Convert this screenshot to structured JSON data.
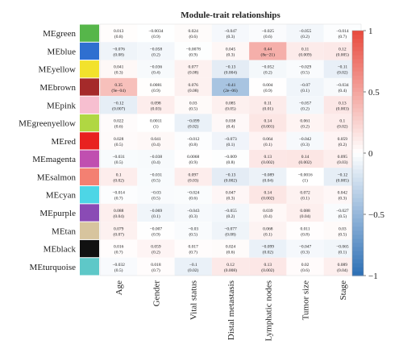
{
  "chart_data": {
    "type": "heatmap",
    "title": "Module-trait relationships",
    "xlabel": "",
    "ylabel": "",
    "colorscale": {
      "min": -1,
      "max": 1,
      "low_color": "#2c6fb5",
      "mid_color": "#ffffff",
      "high_color": "#e84a3d"
    },
    "colorbar_ticks": [
      {
        "value": 1,
        "label": "1"
      },
      {
        "value": 0.5,
        "label": "0.5"
      },
      {
        "value": 0,
        "label": "0"
      },
      {
        "value": -0.5,
        "label": "−0.5"
      },
      {
        "value": -1,
        "label": "−1"
      }
    ],
    "columns": [
      "Age",
      "Gender",
      "Vital status",
      "Distal metastasis",
      "Lymphatic nodes",
      "Tumor size",
      "Stage"
    ],
    "rows": [
      {
        "name": "MEgreen",
        "color": "#56b64a",
        "values": [
          0.013,
          -0.0034,
          0.024,
          -0.047,
          -0.025,
          -0.055,
          -0.014
        ],
        "labels": [
          "0.013",
          "−0.0034",
          "0.024",
          "−0.047",
          "−0.025",
          "−0.055",
          "−0.014"
        ],
        "pvals": [
          "(0.8)",
          "(0.9)",
          "(0.6)",
          "(0.3)",
          "(0.6)",
          "(0.2)",
          "(0.7)"
        ]
      },
      {
        "name": "MEblue",
        "color": "#2f6fd0",
        "values": [
          -0.076,
          -0.058,
          -0.0078,
          0.045,
          0.44,
          0.11,
          0.12
        ],
        "labels": [
          "−0.076",
          "−0.058",
          "−0.0078",
          "0.045",
          "0.44",
          "0.11",
          "0.12"
        ],
        "pvals": [
          "(0.08)",
          "(0.2)",
          "(0.9)",
          "(0.3)",
          "(8e−21)",
          "(0.009)",
          "(0.005)"
        ]
      },
      {
        "name": "MEyellow",
        "color": "#f2e22c",
        "values": [
          0.041,
          -0.036,
          0.077,
          -0.13,
          -0.052,
          -0.029,
          -0.11
        ],
        "labels": [
          "0.041",
          "−0.036",
          "0.077",
          "−0.13",
          "−0.052",
          "−0.029",
          "−0.11"
        ],
        "pvals": [
          "(0.3)",
          "(0.4)",
          "(0.08)",
          "(0.004)",
          "(0.2)",
          "(0.5)",
          "(0.02)"
        ]
      },
      {
        "name": "MEbrown",
        "color": "#a52a2a",
        "values": [
          0.35,
          0.0081,
          0.076,
          -0.41,
          0.004,
          -0.07,
          -0.034
        ],
        "labels": [
          "0.35",
          "0.0081",
          "0.076",
          "−0.41",
          "0.004",
          "−0.07",
          "−0.034"
        ],
        "pvals": [
          "(9e−04)",
          "(0.9)",
          "(0.08)",
          "(2e−06)",
          "(0.9)",
          "(0.1)",
          "(0.4)"
        ]
      },
      {
        "name": "MEpink",
        "color": "#f7bfd0",
        "values": [
          -0.12,
          0.098,
          0.03,
          0.085,
          0.11,
          -0.057,
          0.13
        ],
        "labels": [
          "−0.12",
          "0.098",
          "0.03",
          "0.085",
          "0.11",
          "−0.057",
          "0.13"
        ],
        "pvals": [
          "(0.007)",
          "(0.03)",
          "(0.5)",
          "(0.05)",
          "(0.01)",
          "(0.2)",
          "(0.003)"
        ]
      },
      {
        "name": "MEgreenyellow",
        "color": "#b0d742",
        "values": [
          0.022,
          0.0011,
          -0.099,
          0.038,
          0.14,
          0.061,
          0.1
        ],
        "labels": [
          "0.022",
          "0.0011",
          "−0.099",
          "0.038",
          "0.14",
          "0.061",
          "0.1"
        ],
        "pvals": [
          "(0.6)",
          "(1)",
          "(0.02)",
          "(0.4)",
          "(0.001)",
          "(0.2)",
          "(0.02)"
        ]
      },
      {
        "name": "MEred",
        "color": "#e8211f",
        "values": [
          0.028,
          0.041,
          -0.012,
          -0.073,
          0.064,
          -0.042,
          0.059
        ],
        "labels": [
          "0.028",
          "0.041",
          "−0.012",
          "−0.073",
          "0.064",
          "−0.042",
          "0.059"
        ],
        "pvals": [
          "(0.5)",
          "(0.4)",
          "(0.8)",
          "(0.1)",
          "(0.1)",
          "(0.3)",
          "(0.2)"
        ]
      },
      {
        "name": "MEmagenta",
        "color": "#c04fb0",
        "values": [
          -0.031,
          -0.038,
          0.0068,
          -0.009,
          0.13,
          0.14,
          0.095
        ],
        "labels": [
          "−0.031",
          "−0.038",
          "0.0068",
          "−0.009",
          "0.13",
          "0.14",
          "0.095"
        ],
        "pvals": [
          "(0.5)",
          "(0.4)",
          "(0.9)",
          "(0.8)",
          "(0.002)",
          "(0.002)",
          "(0.03)"
        ]
      },
      {
        "name": "MEsalmon",
        "color": "#f38072",
        "values": [
          0.1,
          -0.031,
          0.097,
          -0.13,
          -0.089,
          -0.0016,
          -0.12
        ],
        "labels": [
          "0.1",
          "−0.031",
          "0.097",
          "−0.13",
          "−0.089",
          "−0.0016",
          "−0.12"
        ],
        "pvals": [
          "(0.02)",
          "(0.5)",
          "(0.03)",
          "(0.002)",
          "(0.04)",
          "(1)",
          "(0.005)"
        ]
      },
      {
        "name": "MEcyan",
        "color": "#4dd6e6",
        "values": [
          -0.014,
          -0.03,
          -0.024,
          0.047,
          0.14,
          0.072,
          0.042
        ],
        "labels": [
          "−0.014",
          "−0.03",
          "−0.024",
          "0.047",
          "0.14",
          "0.072",
          "0.042"
        ],
        "pvals": [
          "(0.7)",
          "(0.5)",
          "(0.6)",
          "(0.3)",
          "(0.002)",
          "(0.1)",
          "(0.3)"
        ]
      },
      {
        "name": "MEpurple",
        "color": "#8a4bb5",
        "values": [
          0.088,
          -0.069,
          -0.043,
          -0.055,
          0.039,
          0.088,
          -0.027
        ],
        "labels": [
          "0.088",
          "−0.069",
          "−0.043",
          "−0.055",
          "0.039",
          "0.088",
          "−0.027"
        ],
        "pvals": [
          "(0.04)",
          "(0.1)",
          "(0.3)",
          "(0.2)",
          "(0.4)",
          "(0.04)",
          "(0.5)"
        ]
      },
      {
        "name": "MEtan",
        "color": "#d7c49e",
        "values": [
          0.079,
          -0.007,
          -0.03,
          -0.077,
          0.068,
          0.011,
          0.03
        ],
        "labels": [
          "0.079",
          "−0.007",
          "−0.03",
          "−0.077",
          "0.068",
          "0.011",
          "0.03"
        ],
        "pvals": [
          "(0.07)",
          "(0.9)",
          "(0.5)",
          "(0.08)",
          "(0.1)",
          "(0.8)",
          "(0.5)"
        ]
      },
      {
        "name": "MEblack",
        "color": "#111111",
        "values": [
          0.016,
          0.059,
          0.017,
          0.024,
          -0.099,
          -0.047,
          -0.065
        ],
        "labels": [
          "0.016",
          "0.059",
          "0.017",
          "0.024",
          "−0.099",
          "−0.047",
          "−0.065"
        ],
        "pvals": [
          "(0.7)",
          "(0.2)",
          "(0.7)",
          "(0.6)",
          "(0.02)",
          "(0.3)",
          "(0.1)"
        ]
      },
      {
        "name": "MEturquoise",
        "color": "#5ec8c8",
        "values": [
          -0.032,
          0.018,
          -0.1,
          0.12,
          0.13,
          0.02,
          0.089
        ],
        "labels": [
          "−0.032",
          "0.018",
          "−0.1",
          "0.12",
          "0.13",
          "0.02",
          "0.089"
        ],
        "pvals": [
          "(0.5)",
          "(0.7)",
          "(0.02)",
          "(0.008)",
          "(0.002)",
          "(0.6)",
          "(0.04)"
        ]
      }
    ]
  }
}
